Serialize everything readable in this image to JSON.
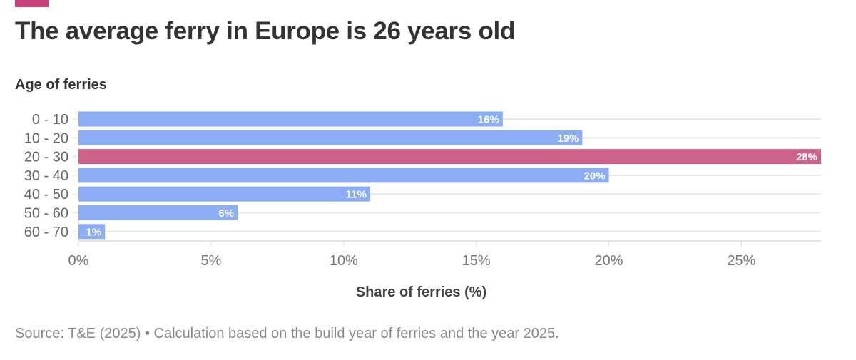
{
  "title": "The average ferry in Europe is 26 years old",
  "subtitle": "Age of ferries",
  "source": "Source: T&E (2025) • Calculation based on the build year of ferries and the year 2025.",
  "colors": {
    "default": "#8aadf4",
    "highlight": "#cd638c",
    "accent": "#c9437a"
  },
  "chart_data": {
    "type": "bar",
    "orientation": "horizontal",
    "categories": [
      "0 - 10",
      "10 - 20",
      "20 - 30",
      "30 - 40",
      "40 - 50",
      "50 - 60",
      "60 - 70"
    ],
    "values": [
      16,
      19,
      28,
      20,
      11,
      6,
      1
    ],
    "data_labels": [
      "16%",
      "19%",
      "28%",
      "20%",
      "11%",
      "6%",
      "1%"
    ],
    "highlight": "20 - 30",
    "xlabel": "Share of ferries (%)",
    "ylabel": "",
    "xlim": [
      0,
      28
    ],
    "xticks": [
      0,
      5,
      10,
      15,
      20,
      25
    ],
    "xtick_labels": [
      "0%",
      "5%",
      "10%",
      "15%",
      "20%",
      "25%"
    ],
    "grid": true
  }
}
